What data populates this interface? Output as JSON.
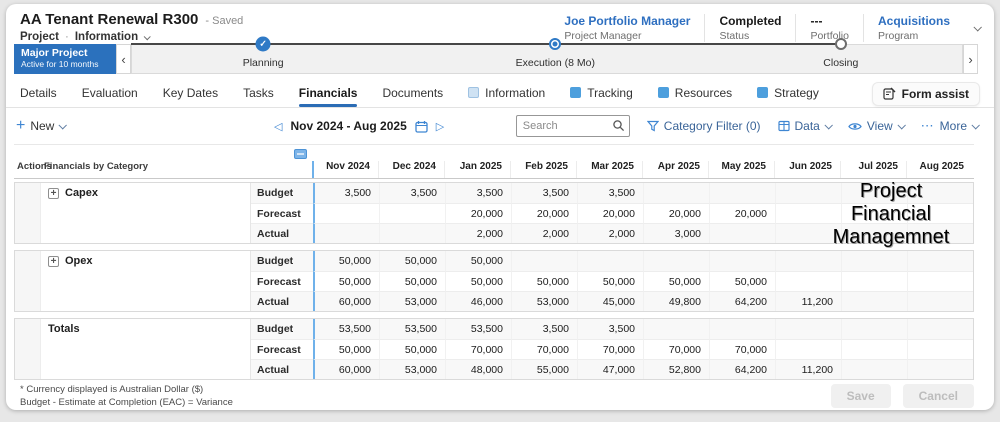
{
  "header": {
    "title": "AA Tenant Renewal R300",
    "saved_status": "- Saved",
    "breadcrumb": {
      "project": "Project",
      "section": "Information"
    },
    "stats": [
      {
        "value": "Joe Portfolio Manager",
        "label": "Project Manager"
      },
      {
        "value": "Completed",
        "label": "Status"
      },
      {
        "value": "---",
        "label": "Portfolio"
      },
      {
        "value": "Acquisitions",
        "label": "Program"
      }
    ]
  },
  "timeline": {
    "badge_title": "Major Project",
    "badge_subtitle": "Active for 10 months",
    "phases": [
      {
        "name": "Planning",
        "state": "done"
      },
      {
        "name": "Execution  (8 Mo)",
        "state": "current"
      },
      {
        "name": "Closing",
        "state": "upcoming"
      }
    ]
  },
  "tabs": [
    {
      "label": "Details"
    },
    {
      "label": "Evaluation"
    },
    {
      "label": "Key Dates"
    },
    {
      "label": "Tasks"
    },
    {
      "label": "Financials",
      "active": true
    },
    {
      "label": "Documents"
    },
    {
      "label": "Information",
      "icon": "pale"
    },
    {
      "label": "Tracking",
      "icon": "solid"
    },
    {
      "label": "Resources",
      "icon": "solid"
    },
    {
      "label": "Strategy",
      "icon": "solid"
    }
  ],
  "form_assist_label": "Form assist",
  "toolbar": {
    "new_label": "New",
    "date_range": "Nov 2024 - Aug 2025",
    "search_placeholder": "Search",
    "category_filter_label": "Category Filter (0)",
    "data_label": "Data",
    "view_label": "View",
    "more_label": "More"
  },
  "table": {
    "actions_header": "Actions",
    "category_header": "Financials by Category",
    "months": [
      "Nov 2024",
      "Dec 2024",
      "Jan 2025",
      "Feb 2025",
      "Mar 2025",
      "Apr 2025",
      "May 2025",
      "Jun 2025",
      "Jul 2025",
      "Aug 2025"
    ],
    "groups": [
      {
        "category": "Capex",
        "expandable": true,
        "rows": [
          {
            "type": "Budget",
            "values": [
              "3,500",
              "3,500",
              "3,500",
              "3,500",
              "3,500",
              "",
              "",
              "",
              "",
              ""
            ]
          },
          {
            "type": "Forecast",
            "values": [
              "",
              "",
              "20,000",
              "20,000",
              "20,000",
              "20,000",
              "20,000",
              "",
              "",
              ""
            ]
          },
          {
            "type": "Actual",
            "values": [
              "",
              "",
              "2,000",
              "2,000",
              "2,000",
              "3,000",
              "",
              "",
              "",
              ""
            ]
          }
        ]
      },
      {
        "category": "Opex",
        "expandable": true,
        "rows": [
          {
            "type": "Budget",
            "values": [
              "50,000",
              "50,000",
              "50,000",
              "",
              "",
              "",
              "",
              "",
              "",
              ""
            ]
          },
          {
            "type": "Forecast",
            "values": [
              "50,000",
              "50,000",
              "50,000",
              "50,000",
              "50,000",
              "50,000",
              "50,000",
              "",
              "",
              ""
            ]
          },
          {
            "type": "Actual",
            "values": [
              "60,000",
              "53,000",
              "46,000",
              "53,000",
              "45,000",
              "49,800",
              "64,200",
              "11,200",
              "",
              ""
            ]
          }
        ]
      },
      {
        "category": "Totals",
        "expandable": false,
        "rows": [
          {
            "type": "Budget",
            "values": [
              "53,500",
              "53,500",
              "53,500",
              "3,500",
              "3,500",
              "",
              "",
              "",
              "",
              ""
            ]
          },
          {
            "type": "Forecast",
            "values": [
              "50,000",
              "50,000",
              "70,000",
              "70,000",
              "70,000",
              "70,000",
              "70,000",
              "",
              "",
              ""
            ]
          },
          {
            "type": "Actual",
            "values": [
              "60,000",
              "53,000",
              "48,000",
              "55,000",
              "47,000",
              "52,800",
              "64,200",
              "11,200",
              "",
              ""
            ]
          }
        ]
      }
    ]
  },
  "watermark": {
    "lines": [
      "Project",
      "Financial",
      "Managemnet"
    ]
  },
  "footer": {
    "note1": "* Currency displayed is Australian Dollar ($)",
    "note2": "Budget - Estimate at Completion (EAC) = Variance",
    "save_label": "Save",
    "cancel_label": "Cancel"
  },
  "colors": {
    "accent_blue": "#3f86d2",
    "link_blue": "#2e6fc0",
    "badge_blue": "#2b71bd",
    "frozen_divider_blue": "#6fb1ea",
    "active_tab_underline": "#2b6cb5"
  }
}
